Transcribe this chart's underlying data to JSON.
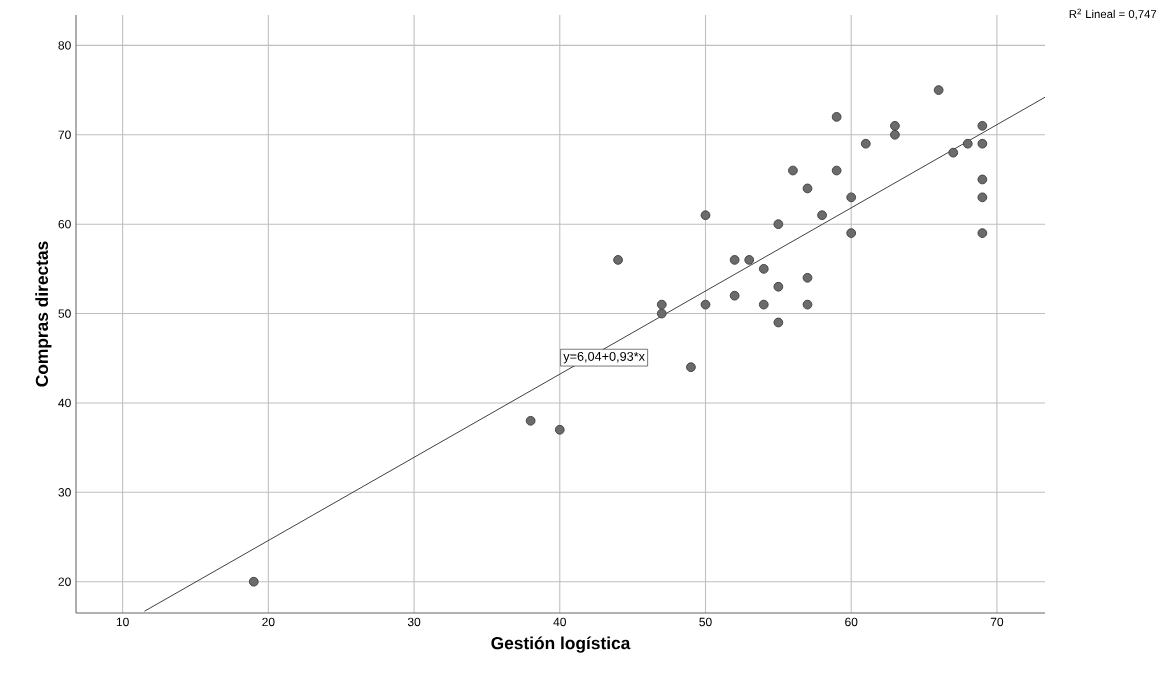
{
  "chart_data": {
    "type": "scatter",
    "xlabel": "Gestión logística",
    "ylabel": "Compras directas",
    "xlim": [
      6.8,
      73.3
    ],
    "ylim": [
      16.5,
      83.4
    ],
    "xticks": [
      10,
      20,
      30,
      40,
      50,
      60,
      70
    ],
    "yticks": [
      20,
      30,
      40,
      50,
      60,
      70,
      80
    ],
    "grid": true,
    "series": [
      {
        "marker": "circle",
        "color": "#6b6b6b",
        "x": [
          19,
          38,
          40,
          44,
          47,
          47,
          49,
          50,
          50,
          52,
          52,
          53,
          54,
          54,
          55,
          55,
          55,
          56,
          57,
          57,
          57,
          58,
          59,
          59,
          60,
          60,
          61,
          63,
          63,
          66,
          67,
          68,
          69,
          69,
          69,
          69,
          69
        ],
        "values": [
          20,
          38,
          37,
          56,
          51,
          50,
          44,
          61,
          51,
          56,
          52,
          56,
          55,
          51,
          60,
          53,
          49,
          66,
          64,
          54,
          51,
          61,
          72,
          66,
          63,
          59,
          69,
          71,
          70,
          75,
          68,
          69,
          71,
          69,
          65,
          63,
          59
        ]
      },
      {
        "type": "line",
        "marker": "none",
        "color": "#333333",
        "x": [
          11.5,
          73.3
        ],
        "values": [
          16.7,
          74.2
        ]
      }
    ],
    "annotations": [
      "y=6,04+0,93*x",
      "R$^{2}$ Lineal = 0,747"
    ]
  }
}
